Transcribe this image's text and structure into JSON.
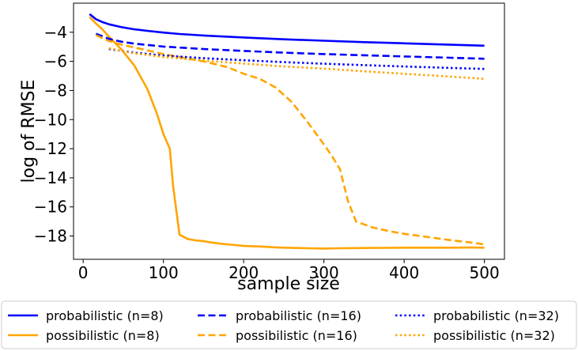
{
  "chart_data": {
    "type": "line",
    "title": "",
    "xlabel": "sample size",
    "ylabel": "log of RMSE",
    "xlim": [
      -12,
      525
    ],
    "ylim": [
      -19.6,
      -2.0
    ],
    "xticks": [
      0,
      100,
      200,
      300,
      400,
      500
    ],
    "yticks": [
      -18,
      -16,
      -14,
      -12,
      -10,
      -8,
      -6,
      -4
    ],
    "grid": false,
    "legend_position": "bottom",
    "series": [
      {
        "name": "probabilistic (n=8)",
        "color": "#0000ff",
        "style": "solid",
        "x": [
          8,
          16,
          24,
          32,
          48,
          64,
          80,
          100,
          120,
          150,
          200,
          250,
          300,
          350,
          400,
          450,
          500
        ],
        "y": [
          -2.75,
          -3.1,
          -3.3,
          -3.45,
          -3.65,
          -3.8,
          -3.9,
          -4.02,
          -4.12,
          -4.22,
          -4.36,
          -4.48,
          -4.58,
          -4.68,
          -4.76,
          -4.84,
          -4.92
        ]
      },
      {
        "name": "possibilistic (n=8)",
        "color": "#ffa500",
        "style": "solid",
        "x": [
          8,
          16,
          24,
          32,
          48,
          64,
          80,
          92,
          100,
          108,
          112,
          120,
          130,
          140,
          150,
          160,
          175,
          190,
          200,
          220,
          240,
          260,
          280,
          300,
          320,
          340,
          360,
          380,
          400,
          420,
          440,
          460,
          480,
          500
        ],
        "y": [
          -2.95,
          -3.4,
          -3.8,
          -4.3,
          -5.2,
          -6.3,
          -7.9,
          -9.6,
          -11.0,
          -12.0,
          -14.5,
          -17.9,
          -18.2,
          -18.3,
          -18.35,
          -18.45,
          -18.55,
          -18.62,
          -18.68,
          -18.72,
          -18.78,
          -18.82,
          -18.84,
          -18.86,
          -18.84,
          -18.83,
          -18.82,
          -18.81,
          -18.8,
          -18.8,
          -18.8,
          -18.8,
          -18.79,
          -18.8
        ]
      },
      {
        "name": "probabilistic (n=16)",
        "color": "#0000ff",
        "style": "dashed",
        "x": [
          16,
          32,
          48,
          64,
          100,
          150,
          200,
          250,
          300,
          350,
          400,
          450,
          500
        ],
        "y": [
          -4.1,
          -4.45,
          -4.65,
          -4.78,
          -4.98,
          -5.15,
          -5.28,
          -5.4,
          -5.5,
          -5.58,
          -5.66,
          -5.74,
          -5.82
        ]
      },
      {
        "name": "possibilistic (n=16)",
        "color": "#ffa500",
        "style": "dashed",
        "x": [
          16,
          32,
          48,
          64,
          100,
          150,
          180,
          200,
          220,
          240,
          260,
          280,
          300,
          310,
          320,
          330,
          340,
          360,
          380,
          400,
          420,
          440,
          460,
          480,
          500
        ],
        "y": [
          -4.2,
          -4.6,
          -4.85,
          -5.05,
          -5.5,
          -6.0,
          -6.4,
          -6.85,
          -7.2,
          -7.8,
          -8.8,
          -10.2,
          -11.7,
          -12.5,
          -13.4,
          -15.6,
          -17.0,
          -17.4,
          -17.65,
          -17.85,
          -18.0,
          -18.15,
          -18.3,
          -18.42,
          -18.58
        ]
      },
      {
        "name": "probabilistic (n=32)",
        "color": "#0000ff",
        "style": "dotted",
        "x": [
          32,
          64,
          100,
          150,
          200,
          250,
          300,
          350,
          400,
          450,
          500
        ],
        "y": [
          -5.15,
          -5.4,
          -5.6,
          -5.78,
          -5.92,
          -6.05,
          -6.16,
          -6.26,
          -6.35,
          -6.44,
          -6.52
        ]
      },
      {
        "name": "possibilistic (n=32)",
        "color": "#ffa500",
        "style": "dotted",
        "x": [
          32,
          64,
          100,
          150,
          200,
          250,
          300,
          350,
          400,
          450,
          500
        ],
        "y": [
          -5.1,
          -5.45,
          -5.7,
          -5.95,
          -6.15,
          -6.35,
          -6.5,
          -6.68,
          -6.85,
          -7.02,
          -7.2
        ]
      }
    ]
  }
}
